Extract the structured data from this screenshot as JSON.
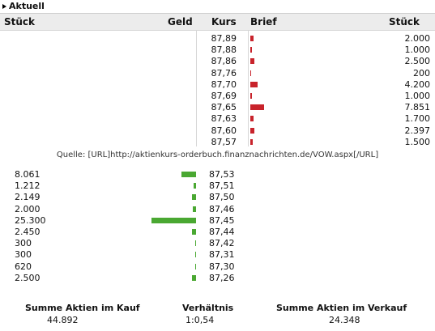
{
  "section": {
    "title": "Aktuell"
  },
  "headers": {
    "stueck_left": "Stück",
    "geld": "Geld",
    "kurs": "Kurs",
    "brief": "Brief",
    "stueck_right": "Stück"
  },
  "ask_rows": [
    {
      "kurs": "87,89",
      "stueck": "2.000",
      "amount": 2000
    },
    {
      "kurs": "87,88",
      "stueck": "1.000",
      "amount": 1000
    },
    {
      "kurs": "87,86",
      "stueck": "2.500",
      "amount": 2500
    },
    {
      "kurs": "87,76",
      "stueck": "200",
      "amount": 200
    },
    {
      "kurs": "87,70",
      "stueck": "4.200",
      "amount": 4200
    },
    {
      "kurs": "87,69",
      "stueck": "1.000",
      "amount": 1000
    },
    {
      "kurs": "87,65",
      "stueck": "7.851",
      "amount": 7851
    },
    {
      "kurs": "87,63",
      "stueck": "1.700",
      "amount": 1700
    },
    {
      "kurs": "87,60",
      "stueck": "2.397",
      "amount": 2397
    },
    {
      "kurs": "87,57",
      "stueck": "1.500",
      "amount": 1500
    }
  ],
  "source_text": "Quelle: [URL]http://aktienkurs-orderbuch.finanznachrichten.de/VOW.aspx[/URL]",
  "bid_rows": [
    {
      "stueck": "8.061",
      "kurs": "87,53",
      "amount": 8061
    },
    {
      "stueck": "1.212",
      "kurs": "87,51",
      "amount": 1212
    },
    {
      "stueck": "2.149",
      "kurs": "87,50",
      "amount": 2149
    },
    {
      "stueck": "2.000",
      "kurs": "87,46",
      "amount": 2000
    },
    {
      "stueck": "25.300",
      "kurs": "87,45",
      "amount": 25300
    },
    {
      "stueck": "2.450",
      "kurs": "87,44",
      "amount": 2450
    },
    {
      "stueck": "300",
      "kurs": "87,42",
      "amount": 300
    },
    {
      "stueck": "300",
      "kurs": "87,31",
      "amount": 300
    },
    {
      "stueck": "620",
      "kurs": "87,30",
      "amount": 620
    },
    {
      "stueck": "2.500",
      "kurs": "87,26",
      "amount": 2500
    }
  ],
  "summary": {
    "kauf_label": "Summe Aktien im Kauf",
    "kauf_value": "44.892",
    "ratio_label": "Verhältnis",
    "ratio_value": "1:0,54",
    "verkauf_label": "Summe Aktien im Verkauf",
    "verkauf_value": "24.348"
  },
  "colors": {
    "ask_bar": "#c8232b",
    "bid_bar": "#4aa832",
    "header_bg": "#ececec"
  }
}
